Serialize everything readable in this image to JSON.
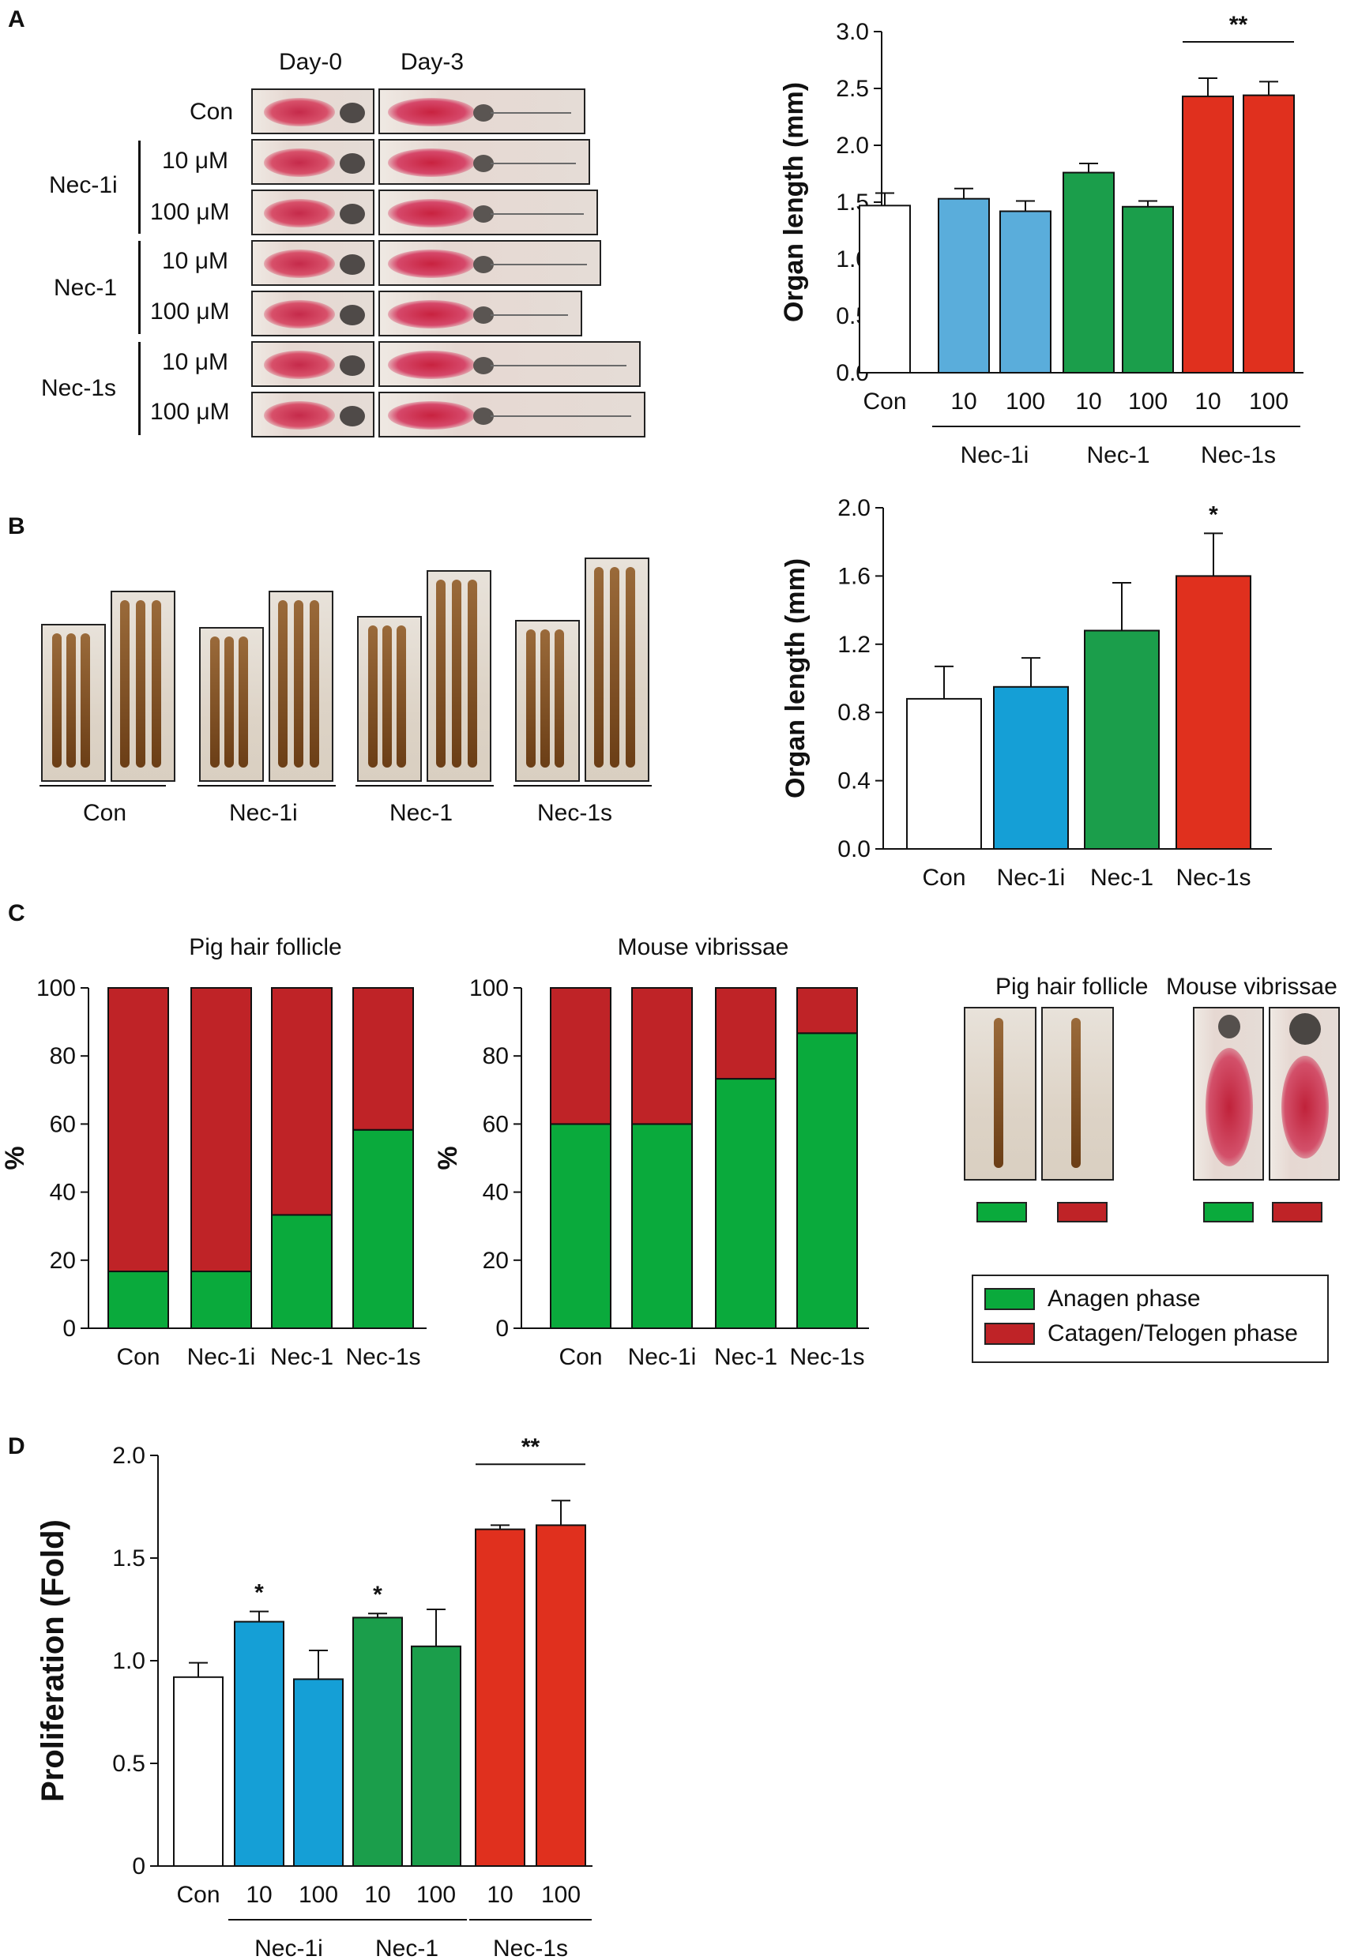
{
  "panels": {
    "A": "A",
    "B": "B",
    "C": "C",
    "D": "D"
  },
  "colors": {
    "con": "#ffffff",
    "nec1i": "#5aaddb",
    "nec1i_d": "#159fd6",
    "nec1": "#1b9e4b",
    "nec1s": "#e0301e",
    "anagen": "#0aaa3c",
    "catagen": "#bf2327"
  },
  "panel_a_photos": {
    "day0": "Day-0",
    "day3": "Day-3",
    "rows": [
      {
        "group": "",
        "dose": "Con"
      },
      {
        "group": "Nec-1i",
        "dose": "10 μM"
      },
      {
        "group": "",
        "dose": "100 μM"
      },
      {
        "group": "Nec-1",
        "dose": "10 μM"
      },
      {
        "group": "",
        "dose": "100 μM"
      },
      {
        "group": "Nec-1s",
        "dose": "10 μM"
      },
      {
        "group": "",
        "dose": "100 μM"
      }
    ],
    "groups": [
      "Nec-1i",
      "Nec-1",
      "Nec-1s"
    ]
  },
  "panel_b_photos": {
    "labels": [
      "Con",
      "Nec-1i",
      "Nec-1",
      "Nec-1s"
    ]
  },
  "panel_c_photos": {
    "pig_title": "Pig hair follicle",
    "mouse_title": "Mouse vibrissae"
  },
  "legend": {
    "anagen": "Anagen phase",
    "catagen": "Catagen/Telogen phase"
  },
  "chart_data": [
    {
      "id": "A",
      "type": "bar",
      "ylabel": "Organ length (mm)",
      "ylim": [
        0,
        3.0
      ],
      "yticks": [
        "0.0",
        "0.5",
        "1.0",
        "1.5",
        "2.0",
        "2.5",
        "3.0"
      ],
      "categories": [
        "Con",
        "10",
        "100",
        "10",
        "100",
        "10",
        "100"
      ],
      "groups": [
        {
          "label": "Nec-1i",
          "span": [
            1,
            2
          ]
        },
        {
          "label": "Nec-1",
          "span": [
            3,
            4
          ]
        },
        {
          "label": "Nec-1s",
          "span": [
            5,
            6
          ]
        }
      ],
      "values": [
        1.47,
        1.53,
        1.42,
        1.76,
        1.46,
        2.43,
        2.44
      ],
      "errors": [
        0.11,
        0.09,
        0.09,
        0.08,
        0.05,
        0.16,
        0.12
      ],
      "color_keys": [
        "con",
        "nec1i",
        "nec1i",
        "nec1",
        "nec1",
        "nec1s",
        "nec1s"
      ],
      "annotations": [
        {
          "text": "**",
          "span": [
            5,
            6
          ]
        }
      ]
    },
    {
      "id": "B",
      "type": "bar",
      "ylabel": "Organ length (mm)",
      "ylim": [
        0,
        2.0
      ],
      "yticks": [
        "0.0",
        "0.4",
        "0.8",
        "1.2",
        "1.6",
        "2.0"
      ],
      "categories": [
        "Con",
        "Nec-1i",
        "Nec-1",
        "Nec-1s"
      ],
      "values": [
        0.88,
        0.95,
        1.28,
        1.6
      ],
      "errors": [
        0.19,
        0.17,
        0.28,
        0.25
      ],
      "color_keys": [
        "con",
        "nec1i_d",
        "nec1",
        "nec1s"
      ],
      "annotations": [
        {
          "text": "*",
          "index": 3
        }
      ]
    },
    {
      "id": "C1",
      "type": "stacked-bar",
      "title": "Pig hair follicle",
      "ylabel": "%",
      "ylim": [
        0,
        100
      ],
      "yticks": [
        "0",
        "20",
        "40",
        "60",
        "80",
        "100"
      ],
      "categories": [
        "Con",
        "Nec-1i",
        "Nec-1",
        "Nec-1s"
      ],
      "series": [
        {
          "name": "Anagen phase",
          "values": [
            16.7,
            16.7,
            33.3,
            58.3
          ]
        },
        {
          "name": "Catagen/Telogen phase",
          "values": [
            83.3,
            83.3,
            66.7,
            41.7
          ]
        }
      ]
    },
    {
      "id": "C2",
      "type": "stacked-bar",
      "title": "Mouse vibrissae",
      "ylabel": "%",
      "ylim": [
        0,
        100
      ],
      "yticks": [
        "0",
        "20",
        "40",
        "60",
        "80",
        "100"
      ],
      "categories": [
        "Con",
        "Nec-1i",
        "Nec-1",
        "Nec-1s"
      ],
      "series": [
        {
          "name": "Anagen phase",
          "values": [
            60,
            60,
            73.3,
            86.7
          ]
        },
        {
          "name": "Catagen/Telogen phase",
          "values": [
            40,
            40,
            26.7,
            13.3
          ]
        }
      ]
    },
    {
      "id": "D",
      "type": "bar",
      "ylabel": "Proliferation (Fold)",
      "ylim": [
        0,
        2.0
      ],
      "yticks": [
        "0",
        "0.5",
        "1.0",
        "1.5",
        "2.0"
      ],
      "categories": [
        "Con",
        "10",
        "100",
        "10",
        "100",
        "10",
        "100"
      ],
      "groups": [
        {
          "label": "Nec-1i",
          "span": [
            1,
            2
          ]
        },
        {
          "label": "Nec-1",
          "span": [
            3,
            4
          ]
        },
        {
          "label": "Nec-1s",
          "span": [
            5,
            6
          ]
        }
      ],
      "values": [
        0.92,
        1.19,
        0.91,
        1.21,
        1.07,
        1.64,
        1.66
      ],
      "errors": [
        0.07,
        0.05,
        0.14,
        0.02,
        0.18,
        0.02,
        0.12
      ],
      "color_keys": [
        "con",
        "nec1i_d",
        "nec1i_d",
        "nec1",
        "nec1",
        "nec1s",
        "nec1s"
      ],
      "annotations": [
        {
          "text": "*",
          "index": 1
        },
        {
          "text": "*",
          "index": 3
        },
        {
          "text": "**",
          "span": [
            5,
            6
          ]
        }
      ]
    }
  ]
}
